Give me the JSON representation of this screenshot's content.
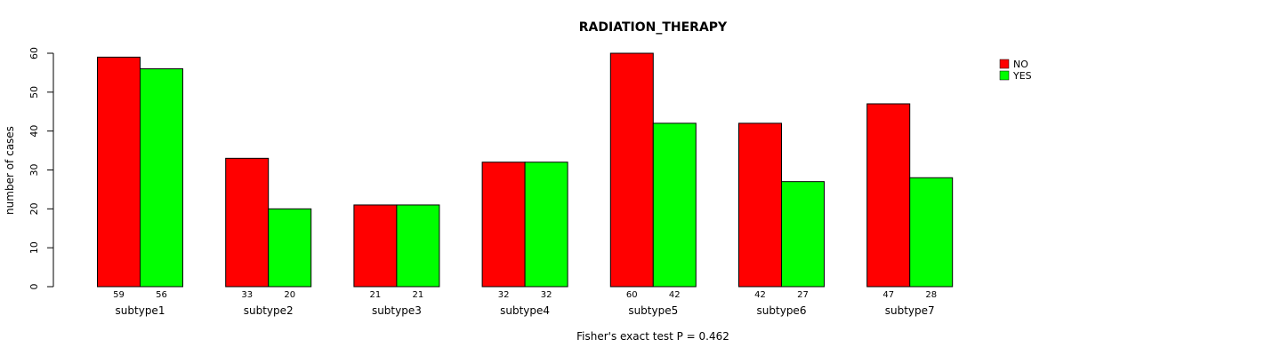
{
  "chart_data": {
    "type": "bar",
    "title": "RADIATION_THERAPY",
    "xlabel": "",
    "ylabel": "number of cases",
    "ylim": [
      0,
      60
    ],
    "yticks": [
      0,
      10,
      20,
      30,
      40,
      50,
      60
    ],
    "categories": [
      "subtype1",
      "subtype2",
      "subtype3",
      "subtype4",
      "subtype5",
      "subtype6",
      "subtype7"
    ],
    "series": [
      {
        "name": "NO",
        "color": "#ff0000",
        "values": [
          59,
          33,
          21,
          32,
          60,
          42,
          47
        ]
      },
      {
        "name": "YES",
        "color": "#00ff00",
        "values": [
          56,
          20,
          21,
          32,
          42,
          27,
          28
        ]
      }
    ],
    "legend_position": "top-right",
    "grid": false,
    "footnote": "Fisher's exact test P = 0.462"
  }
}
